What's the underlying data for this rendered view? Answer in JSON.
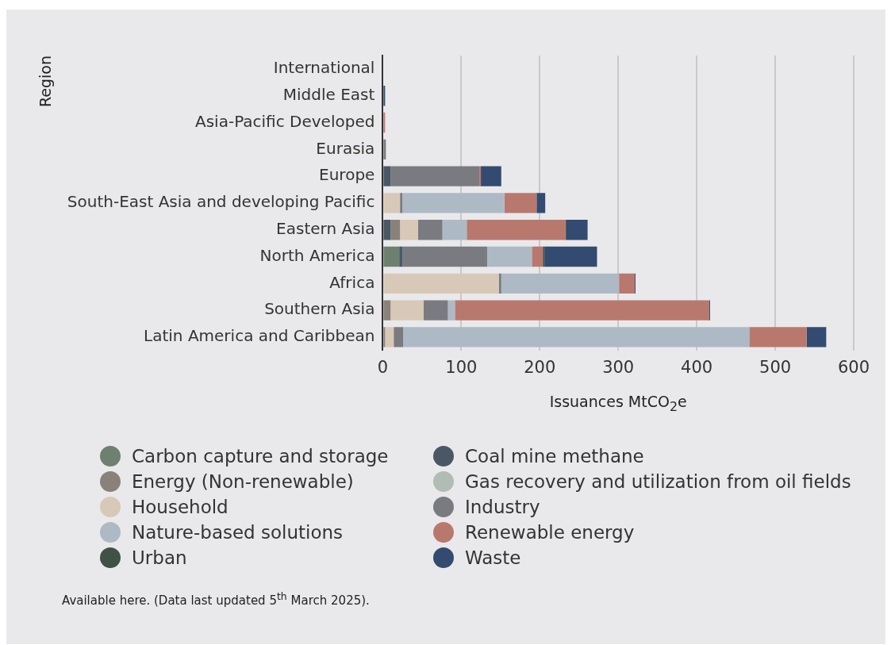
{
  "chart_data": {
    "type": "bar",
    "orientation": "horizontal",
    "stacked": true,
    "xlabel": "Issuances MtCO$_{2}$e",
    "ylabel": "Region",
    "categories": [
      "International",
      "Middle East",
      "Asia-Pacific Developed",
      "Eurasia",
      "Europe",
      "South-East Asia and developing Pacific",
      "Eastern Asia",
      "North America",
      "Africa",
      "Southern Asia",
      "Latin America and Caribbean"
    ],
    "xlim": [
      0,
      600
    ],
    "xticks": [
      0,
      100,
      200,
      300,
      400,
      500,
      600
    ],
    "grid": "x",
    "legend": "bottom",
    "series": [
      {
        "name": "Carbon capture and storage",
        "color": "#6e8070",
        "values": [
          0,
          0,
          0,
          0,
          0,
          0,
          0,
          21,
          0,
          0,
          0
        ]
      },
      {
        "name": "Coal mine methane",
        "color": "#4a5866",
        "values": [
          0,
          0,
          0,
          0,
          10,
          0,
          10,
          4,
          0,
          0,
          0
        ]
      },
      {
        "name": "Energy (Non-renewable)",
        "color": "#8a817b",
        "values": [
          0,
          0,
          0,
          0,
          0,
          0,
          12,
          0,
          0,
          10,
          3
        ]
      },
      {
        "name": "Gas recovery and utilization from oil fields",
        "color": "#b0bcb4",
        "values": [
          0,
          0,
          0,
          0,
          0,
          1,
          0,
          0,
          0,
          0,
          0
        ]
      },
      {
        "name": "Household",
        "color": "#d8c8b8",
        "values": [
          0,
          0,
          0,
          0,
          0,
          21,
          23,
          null,
          148,
          42,
          11
        ]
      },
      {
        "name": "Industry",
        "color": "#7a7b80",
        "values": [
          0,
          0,
          0,
          4,
          113,
          3,
          31,
          108,
          3,
          31,
          12
        ]
      },
      {
        "name": "Nature-based solutions",
        "color": "#adbac5",
        "values": [
          0,
          0,
          0,
          0,
          0,
          130,
          31,
          57,
          150,
          9,
          441
        ]
      },
      {
        "name": "Renewable energy",
        "color": "#b9786e",
        "values": [
          0,
          0,
          3,
          0,
          2,
          41,
          126,
          14,
          20,
          324,
          73
        ]
      },
      {
        "name": "Urban",
        "color": "#3f5245",
        "values": [
          0,
          0,
          0,
          0,
          0,
          0,
          1,
          2,
          0,
          0,
          0
        ]
      },
      {
        "name": "Waste",
        "color": "#334b70",
        "values": [
          0,
          3,
          0,
          0,
          26,
          11,
          27,
          67,
          1,
          1,
          25
        ]
      }
    ],
    "annotations": [
      "Available here. (Data last updated 5$^{th}$ March 2025)."
    ]
  }
}
